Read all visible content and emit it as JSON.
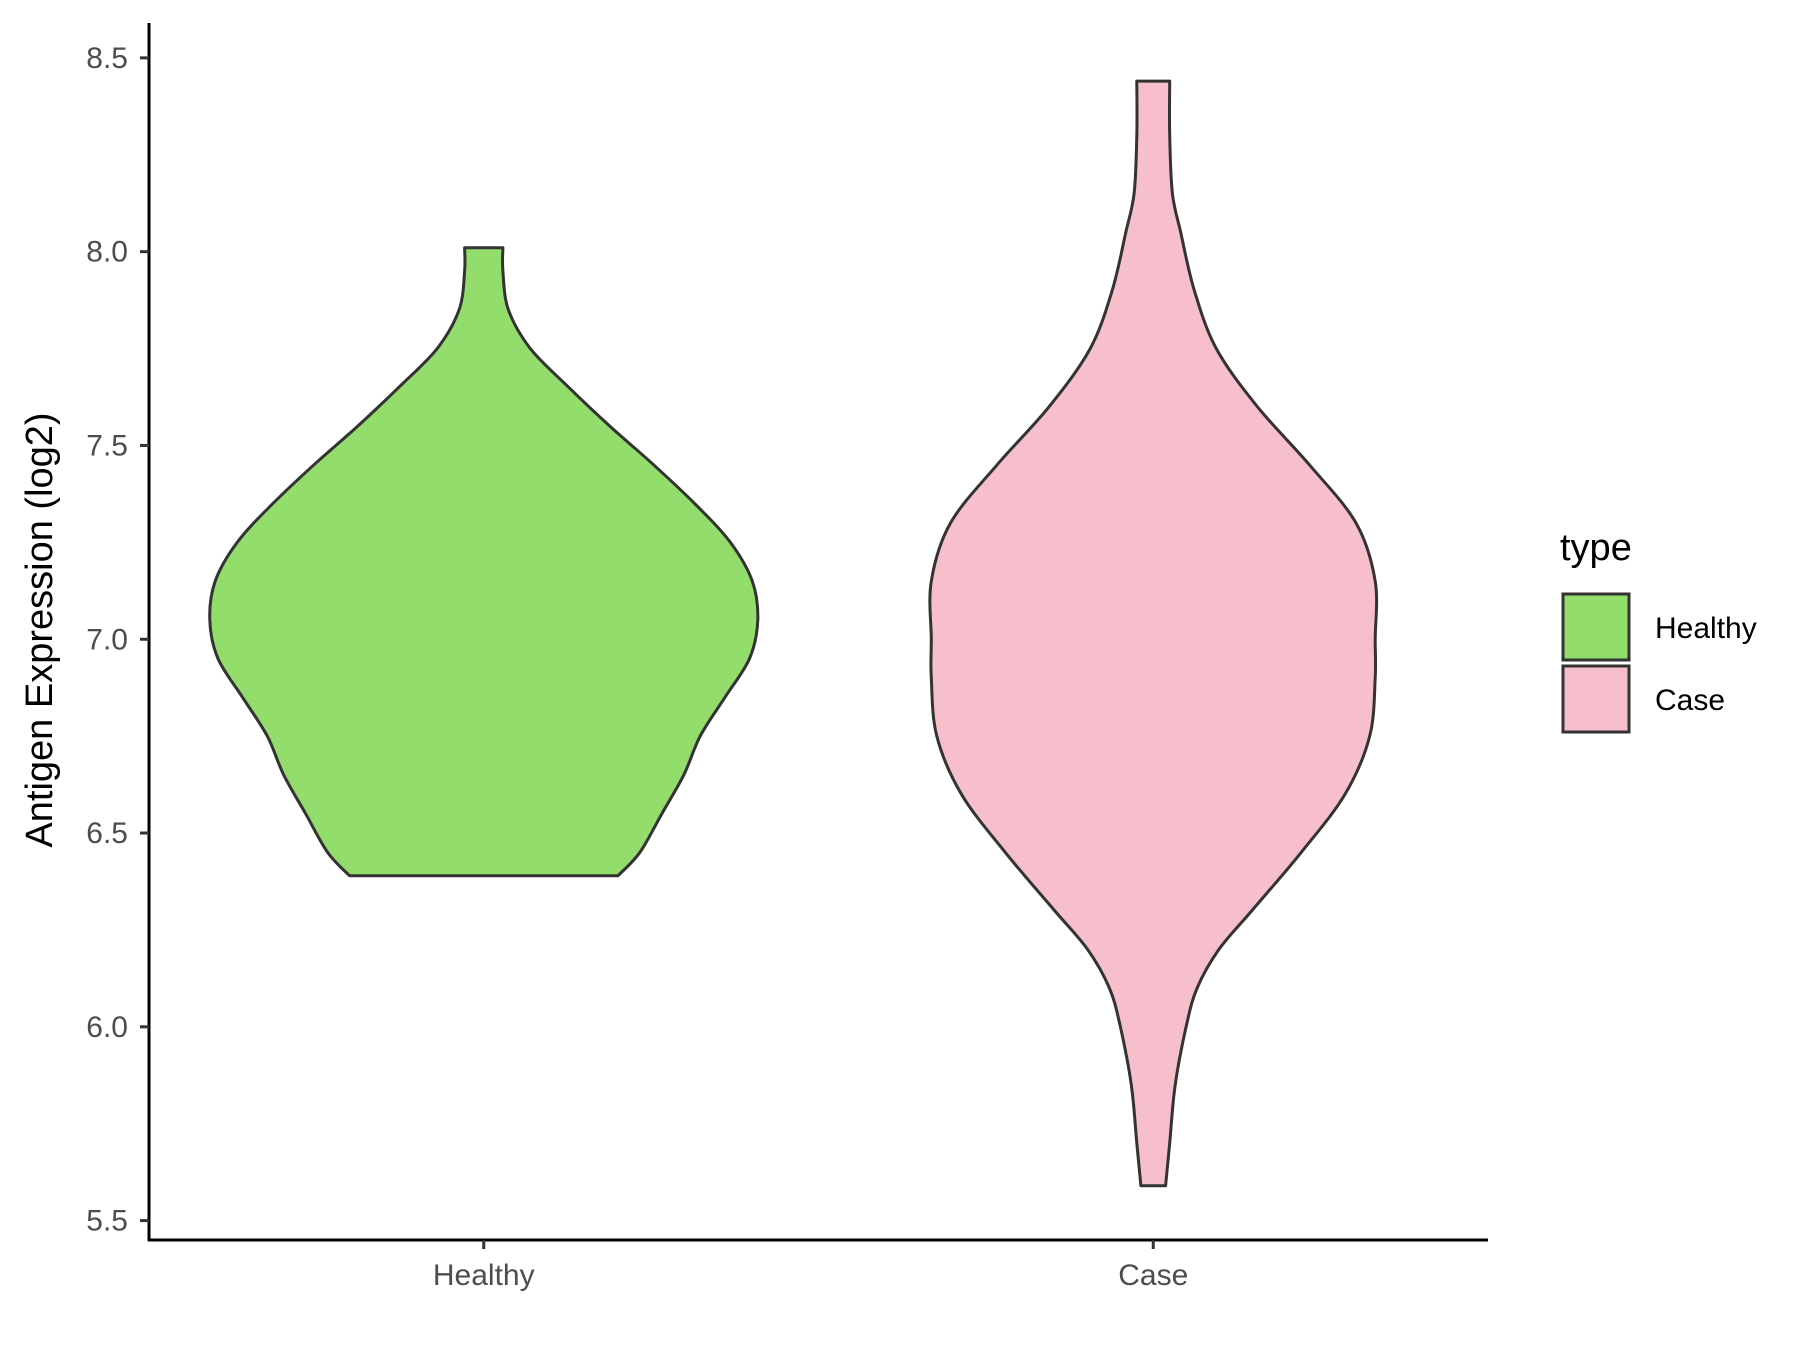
{
  "chart_data": {
    "type": "violin",
    "xlabel": "",
    "ylabel": "Antigen Expression (log2)",
    "ylim": [
      5.45,
      8.59
    ],
    "yticks": [
      "5.5",
      "6.0",
      "6.5",
      "7.0",
      "7.5",
      "8.0",
      "8.5"
    ],
    "categories": [
      "Healthy",
      "Case"
    ],
    "grid": false,
    "legend": {
      "title": "type",
      "position": "right",
      "entries": [
        {
          "label": "Healthy",
          "color": "#93dd6c"
        },
        {
          "label": "Case",
          "color": "#f7bfcb"
        }
      ]
    },
    "series": [
      {
        "category": "Healthy",
        "color": "#93dd6c",
        "min": 6.39,
        "max": 8.01,
        "profile": [
          [
            6.39,
            0.49
          ],
          [
            6.45,
            0.57
          ],
          [
            6.55,
            0.65
          ],
          [
            6.65,
            0.73
          ],
          [
            6.75,
            0.79
          ],
          [
            6.85,
            0.88
          ],
          [
            6.95,
            0.97
          ],
          [
            7.05,
            1.0
          ],
          [
            7.15,
            0.98
          ],
          [
            7.25,
            0.9
          ],
          [
            7.35,
            0.77
          ],
          [
            7.45,
            0.62
          ],
          [
            7.55,
            0.46
          ],
          [
            7.65,
            0.31
          ],
          [
            7.75,
            0.17
          ],
          [
            7.85,
            0.09
          ],
          [
            7.95,
            0.07
          ],
          [
            8.01,
            0.07
          ]
        ]
      },
      {
        "category": "Case",
        "color": "#f7bfcb",
        "min": 5.59,
        "max": 8.44,
        "profile": [
          [
            5.59,
            0.045
          ],
          [
            5.7,
            0.06
          ],
          [
            5.85,
            0.08
          ],
          [
            6.0,
            0.12
          ],
          [
            6.1,
            0.16
          ],
          [
            6.2,
            0.24
          ],
          [
            6.3,
            0.36
          ],
          [
            6.45,
            0.54
          ],
          [
            6.6,
            0.7
          ],
          [
            6.75,
            0.79
          ],
          [
            6.9,
            0.81
          ],
          [
            7.0,
            0.81
          ],
          [
            7.15,
            0.81
          ],
          [
            7.3,
            0.74
          ],
          [
            7.45,
            0.57
          ],
          [
            7.6,
            0.38
          ],
          [
            7.75,
            0.23
          ],
          [
            7.9,
            0.15
          ],
          [
            8.05,
            0.1
          ],
          [
            8.15,
            0.07
          ],
          [
            8.3,
            0.06
          ],
          [
            8.44,
            0.06
          ]
        ]
      }
    ]
  }
}
